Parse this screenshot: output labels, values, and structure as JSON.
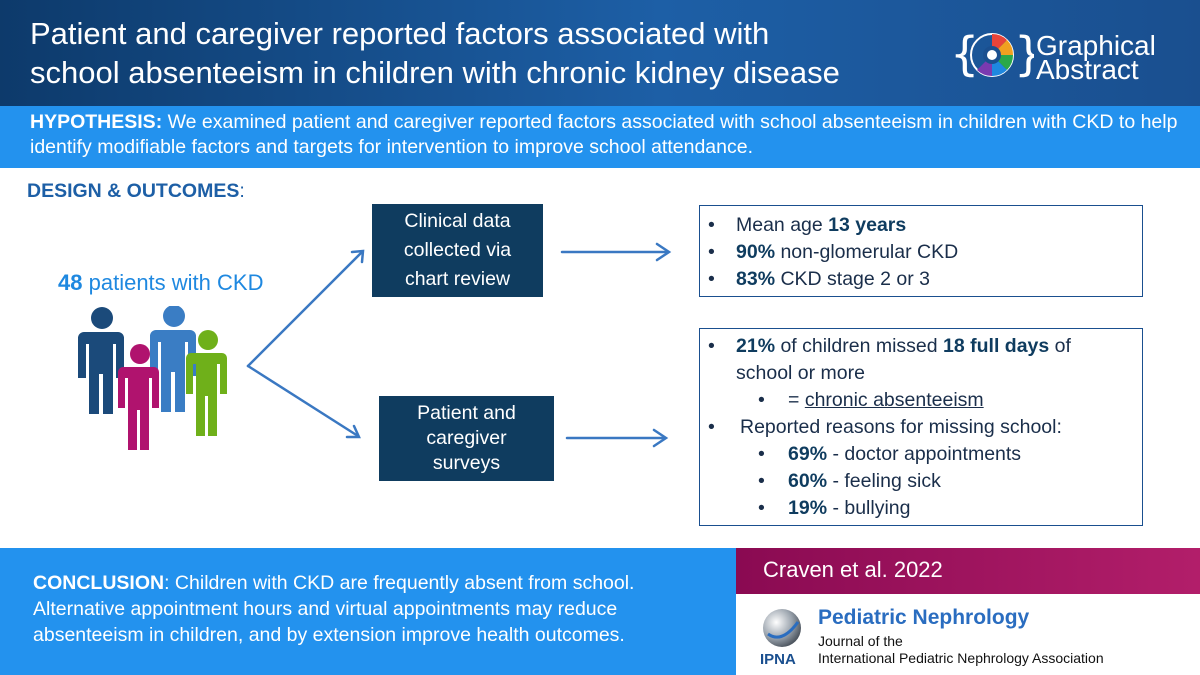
{
  "header": {
    "title_line1": "Patient and caregiver reported factors associated with",
    "title_line2": "school absenteeism in children with chronic kidney disease",
    "brand_line1": "Graphical",
    "brand_line2": "Abstract"
  },
  "hypothesis": {
    "label": "HYPOTHESIS:",
    "text": "We examined patient and caregiver reported factors associated with school absenteeism in children with CKD to help identify modifiable factors and targets for intervention to improve school attendance."
  },
  "design": {
    "heading": "DESIGN & OUTCOMES",
    "colon": ":",
    "patients_count": "48",
    "patients_label": "patients with CKD"
  },
  "boxes": {
    "clinical": [
      "Clinical data",
      "collected via",
      "chart review"
    ],
    "survey": [
      "Patient and",
      "caregiver",
      "surveys"
    ]
  },
  "outcomes1": {
    "bullet": "•",
    "items": [
      {
        "pre": "Mean age ",
        "bold": "13 years",
        "post": ""
      },
      {
        "pre": "",
        "bold": "90%",
        "post": " non-glomerular CKD"
      },
      {
        "pre": "",
        "bold": "83%",
        "post": " CKD stage 2 or 3"
      }
    ]
  },
  "outcomes2": {
    "bullet": "•",
    "line1_bold1": "21%",
    "line1_mid": " of children missed ",
    "line1_bold2": "18 full days",
    "line1_post": " of",
    "line1_cont": "school or more",
    "equals_pre": "= ",
    "equals_underlined": "chronic absenteeism",
    "reasons_heading": "Reported reasons for missing school:",
    "reasons": [
      {
        "pct": "69%",
        "text": " - doctor appointments"
      },
      {
        "pct": "60%",
        "text": " - feeling sick"
      },
      {
        "pct": "19%",
        "text": " - bullying"
      }
    ]
  },
  "conclusion": {
    "label": "CONCLUSION",
    "text": ": Children with CKD are frequently absent from school. Alternative appointment hours and virtual appointments may reduce absenteeism in children, and by extension improve health outcomes."
  },
  "citation": "Craven et al. 2022",
  "journal": {
    "name": "Pediatric Nephrology",
    "sub1": "Journal of the",
    "sub2": "International  Pediatric Nephrology Association",
    "logo_text": "IPNA"
  },
  "colors": {
    "header_dark": "#0d3a6b",
    "band_blue": "#2392ee",
    "box_navy": "#0f3c5f",
    "arrow_blue": "#3a78c2",
    "citation_magenta": "#8a0a52",
    "person_navy": "#1b4a7a",
    "person_blue": "#3a7dc4",
    "person_magenta": "#b0136e",
    "person_green": "#6fb01a"
  }
}
